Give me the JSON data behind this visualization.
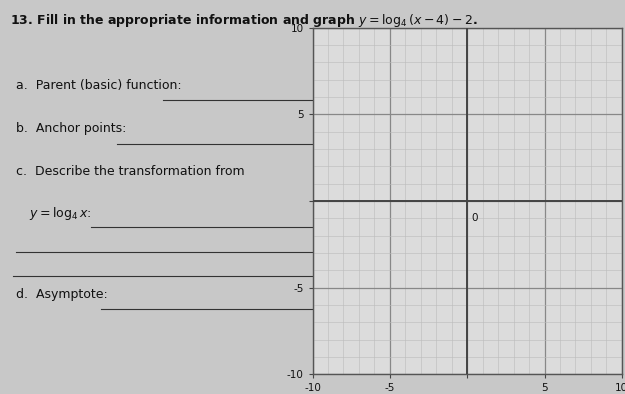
{
  "title_num": "13.",
  "title_text": "Fill in the appropriate information and graph ",
  "title_formula": "y = log₄(x − 4) − 2.",
  "label_a": "a.  Parent (basic) function:",
  "label_b": "b.  Anchor points:",
  "label_c": "c.  Describe the transformation from",
  "label_cy": "     y = log₄ x:",
  "label_d": "d.  Asymptote:",
  "graph": {
    "xlim": [
      -10,
      10
    ],
    "ylim": [
      -10,
      10
    ],
    "xticks": [
      -10,
      -5,
      0,
      5,
      10
    ],
    "yticks": [
      -10,
      -5,
      0,
      5,
      10
    ],
    "minor_step": 1,
    "grid_minor_color": "#bbbbbb",
    "grid_major_color": "#888888",
    "bg_color": "#dcdcdc",
    "axis_color": "#444444"
  },
  "page_bg": "#c8c8c8",
  "text_color": "#111111",
  "font_size": 9.0,
  "underline_color": "#333333"
}
